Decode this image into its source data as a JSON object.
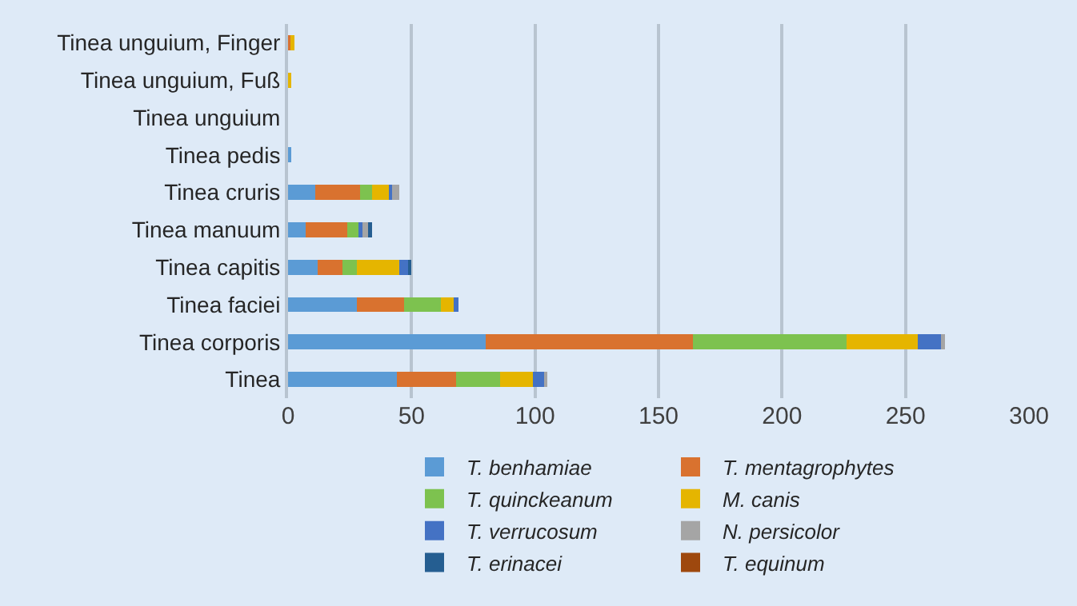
{
  "chart_data": {
    "type": "bar",
    "orientation": "horizontal",
    "stacked": true,
    "categories": [
      "Tinea unguium, Finger",
      "Tinea unguium, Fuß",
      "Tinea unguium",
      "Tinea pedis",
      "Tinea cruris",
      "Tinea manuum",
      "Tinea capitis",
      "Tinea faciei",
      "Tinea corporis",
      "Tinea"
    ],
    "series": [
      {
        "name": "T. benhamiae",
        "color": "#5b9bd5",
        "values": [
          0,
          0,
          0,
          1,
          11,
          7,
          12,
          28,
          80,
          44
        ]
      },
      {
        "name": "T. mentagrophytes",
        "color": "#d9722f",
        "values": [
          1,
          0,
          0,
          0,
          18,
          17,
          10,
          19,
          84,
          24
        ]
      },
      {
        "name": "T. quinckeanum",
        "color": "#7dc24f",
        "values": [
          0,
          0,
          0,
          0,
          5,
          5,
          6,
          15,
          62,
          18
        ]
      },
      {
        "name": "M. canis",
        "color": "#e5b500",
        "values": [
          1.5,
          1,
          0,
          0,
          7,
          0,
          17,
          5,
          29,
          13
        ]
      },
      {
        "name": "T. verrucosum",
        "color": "#4472c4",
        "values": [
          0,
          0,
          0,
          0,
          1,
          1,
          4,
          2,
          10,
          5
        ]
      },
      {
        "name": "N. persicolor",
        "color": "#a5a5a5",
        "values": [
          0,
          0,
          0,
          0,
          3,
          3,
          0,
          0,
          1,
          1
        ]
      },
      {
        "name": "T. erinacei",
        "color": "#255e91",
        "values": [
          0,
          0,
          0,
          0,
          0,
          1,
          1,
          0,
          0,
          0
        ]
      },
      {
        "name": "T. equinum",
        "color": "#9e480e",
        "values": [
          0,
          0,
          0,
          0,
          0,
          0,
          0,
          0,
          0,
          0
        ]
      }
    ],
    "xlim": [
      0,
      300
    ],
    "xticks": [
      0,
      50,
      100,
      150,
      200,
      250,
      300
    ],
    "grid": "x",
    "legend": "bottom"
  }
}
